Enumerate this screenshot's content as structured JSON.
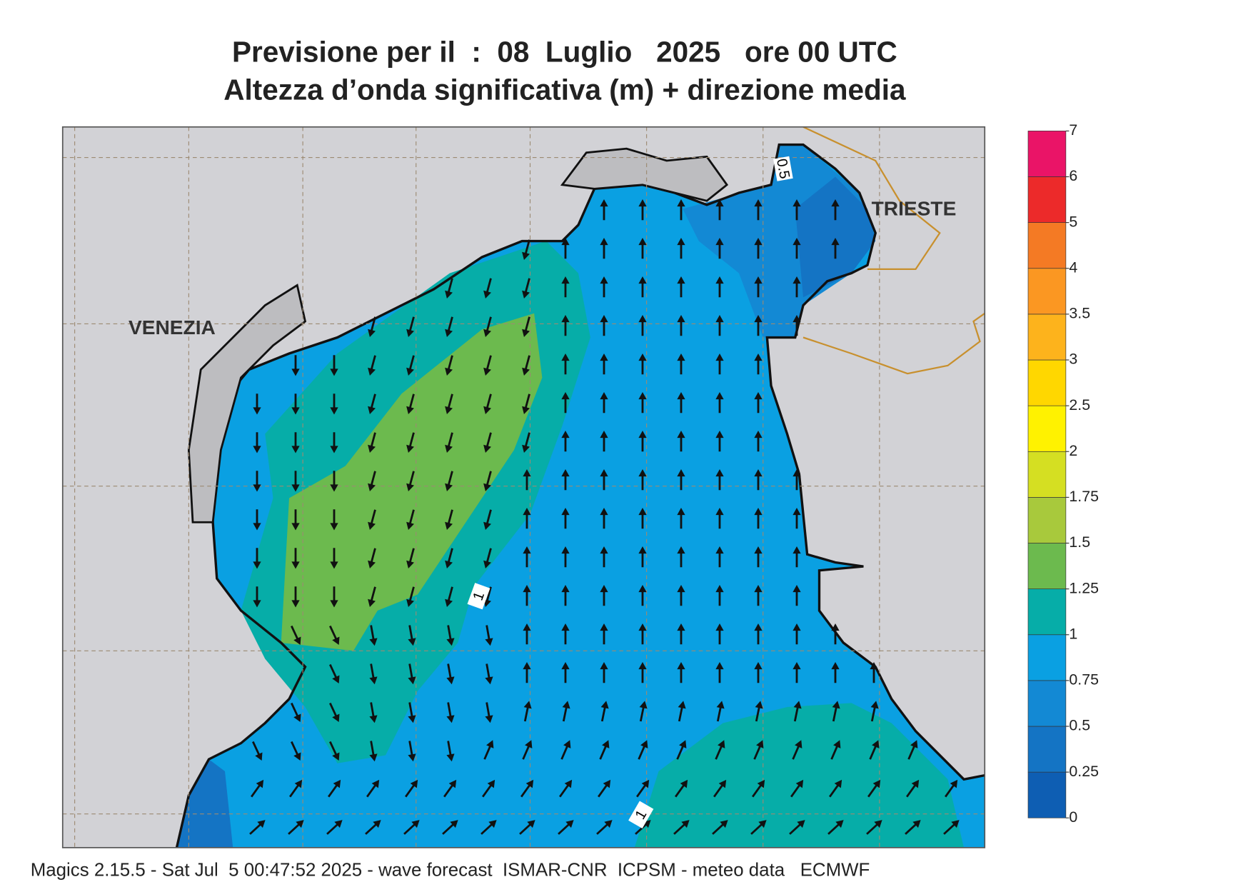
{
  "chart_data": {
    "type": "contour-map",
    "title": "Previsione per il  :  08  Luglio   2025   ore 00 UTC",
    "subtitle": "Altezza d’onda significativa (m) + direzione media",
    "place_labels": [
      "VENEZIA",
      "TRIESTE"
    ],
    "contour_labels": [
      0.5,
      1,
      1
    ],
    "colorbar": {
      "levels": [
        0,
        0.25,
        0.5,
        0.75,
        1,
        1.25,
        1.5,
        1.75,
        2,
        2.5,
        3,
        3.5,
        4,
        5,
        6,
        7
      ],
      "colors": [
        "#0e5eb3",
        "#1474c4",
        "#1389d4",
        "#0aa0e2",
        "#06ada8",
        "#6cba4e",
        "#a8c93c",
        "#d5df22",
        "#fff200",
        "#ffd700",
        "#fdb31c",
        "#fb9722",
        "#f47a24",
        "#ec2a2a",
        "#ea1467"
      ]
    },
    "footer": "Magics 2.15.5 - Sat Jul  5 00:47:52 2025 - wave forecast  ISMAR-CNR  ICPSM - meteo data   ECMWF"
  }
}
